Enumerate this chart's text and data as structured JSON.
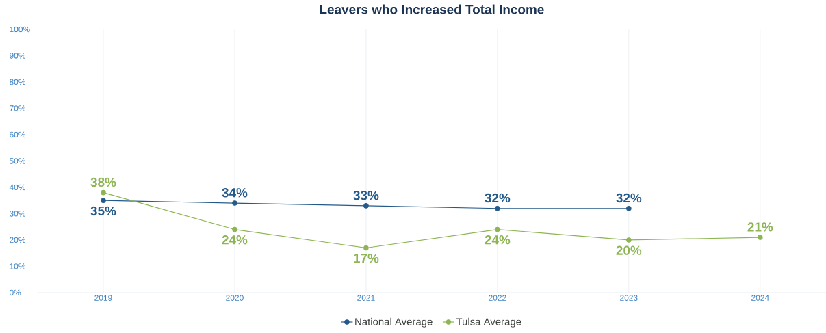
{
  "chart_data": {
    "type": "line",
    "title": "Leavers who Increased Total Income",
    "categories": [
      "2019",
      "2020",
      "2021",
      "2022",
      "2023",
      "2024"
    ],
    "series": [
      {
        "name": "National Average",
        "color": "#245a8a",
        "values": [
          35,
          34,
          33,
          32,
          32,
          null
        ],
        "value_labels": [
          "35%",
          "34%",
          "33%",
          "32%",
          "32%",
          null
        ]
      },
      {
        "name": "Tulsa Average",
        "color": "#8db553",
        "values": [
          38,
          24,
          17,
          24,
          20,
          21
        ],
        "value_labels": [
          "38%",
          "24%",
          "17%",
          "24%",
          "20%",
          "21%"
        ]
      }
    ],
    "ylim": [
      0,
      100
    ],
    "yticks": [
      {
        "value": 0,
        "label": "0%"
      },
      {
        "value": 10,
        "label": "10%"
      },
      {
        "value": 20,
        "label": "20%"
      },
      {
        "value": 30,
        "label": "30%"
      },
      {
        "value": 40,
        "label": "40%"
      },
      {
        "value": 50,
        "label": "50%"
      },
      {
        "value": 60,
        "label": "60%"
      },
      {
        "value": 70,
        "label": "70%"
      },
      {
        "value": 80,
        "label": "80%"
      },
      {
        "value": 90,
        "label": "90%"
      },
      {
        "value": 100,
        "label": "100%"
      }
    ],
    "grid": "x",
    "legend": "bottom",
    "marker": "circle",
    "line_style": "solid"
  }
}
